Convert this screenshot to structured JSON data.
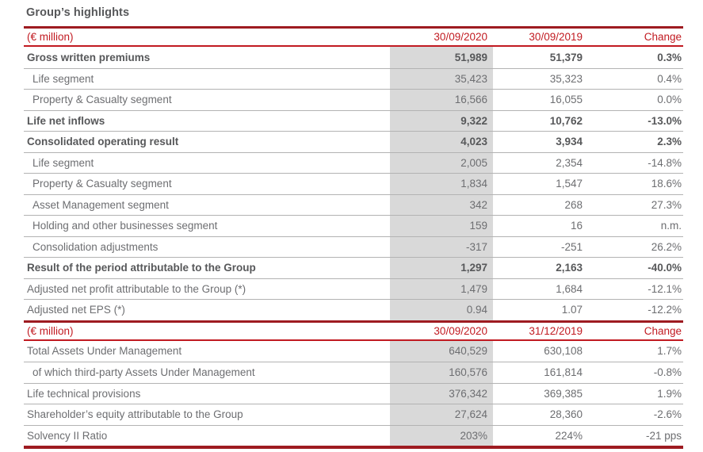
{
  "title": "Group’s highlights",
  "colors": {
    "red": "#C11A21",
    "line_red": "#9E1B21",
    "shade": "#D9D9D9",
    "divider": "#B3B3B3",
    "text": "#6D6E71",
    "text_bold": "#57585A"
  },
  "sections": [
    {
      "header": {
        "unit": "(€ million)",
        "col_current": "30/09/2020",
        "col_prior": "30/09/2019",
        "col_change": "Change"
      },
      "rows": [
        {
          "label": "Gross written premiums",
          "current": "51,989",
          "prior": "51,379",
          "change": "0.3%",
          "style": "bold"
        },
        {
          "label": "Life segment",
          "current": "35,423",
          "prior": "35,323",
          "change": "0.4%",
          "style": "indent"
        },
        {
          "label": "Property & Casualty segment",
          "current": "16,566",
          "prior": "16,055",
          "change": "0.0%",
          "style": "indent"
        },
        {
          "label": "Life net inflows",
          "current": "9,322",
          "prior": "10,762",
          "change": "-13.0%",
          "style": "bold"
        },
        {
          "label": "Consolidated operating result",
          "current": "4,023",
          "prior": "3,934",
          "change": "2.3%",
          "style": "bold"
        },
        {
          "label": "Life segment",
          "current": "2,005",
          "prior": "2,354",
          "change": "-14.8%",
          "style": "indent"
        },
        {
          "label": "Property & Casualty segment",
          "current": "1,834",
          "prior": "1,547",
          "change": "18.6%",
          "style": "indent"
        },
        {
          "label": "Asset Management segment",
          "current": "342",
          "prior": "268",
          "change": "27.3%",
          "style": "indent"
        },
        {
          "label": "Holding and other businesses segment",
          "current": "159",
          "prior": "16",
          "change": "n.m.",
          "style": "indent"
        },
        {
          "label": "Consolidation adjustments",
          "current": "-317",
          "prior": "-251",
          "change": "26.2%",
          "style": "indent"
        },
        {
          "label": "Result of the period attributable to the Group",
          "current": "1,297",
          "prior": "2,163",
          "change": "-40.0%",
          "style": "bold"
        },
        {
          "label": "Adjusted net profit attributable to the Group (*)",
          "current": "1,479",
          "prior": "1,684",
          "change": "-12.1%",
          "style": "plain"
        },
        {
          "label": "Adjusted net EPS (*)",
          "current": "0.94",
          "prior": "1.07",
          "change": "-12.2%",
          "style": "plain"
        }
      ]
    },
    {
      "header": {
        "unit": "(€ million)",
        "col_current": "30/09/2020",
        "col_prior": "31/12/2019",
        "col_change": "Change"
      },
      "rows": [
        {
          "label": "Total Assets Under Management",
          "current": "640,529",
          "prior": "630,108",
          "change": "1.7%",
          "style": "plain"
        },
        {
          "label": "of which third-party Assets Under Management",
          "current": "160,576",
          "prior": "161,814",
          "change": "-0.8%",
          "style": "indent"
        },
        {
          "label": "Life technical provisions",
          "current": "376,342",
          "prior": "369,385",
          "change": "1.9%",
          "style": "plain"
        },
        {
          "label": "Shareholder’s equity attributable to the Group",
          "current": "27,624",
          "prior": "28,360",
          "change": "-2.6%",
          "style": "plain"
        },
        {
          "label": "Solvency II Ratio",
          "current": "203%",
          "prior": "224%",
          "change": "-21 pps",
          "style": "plain"
        }
      ]
    }
  ]
}
